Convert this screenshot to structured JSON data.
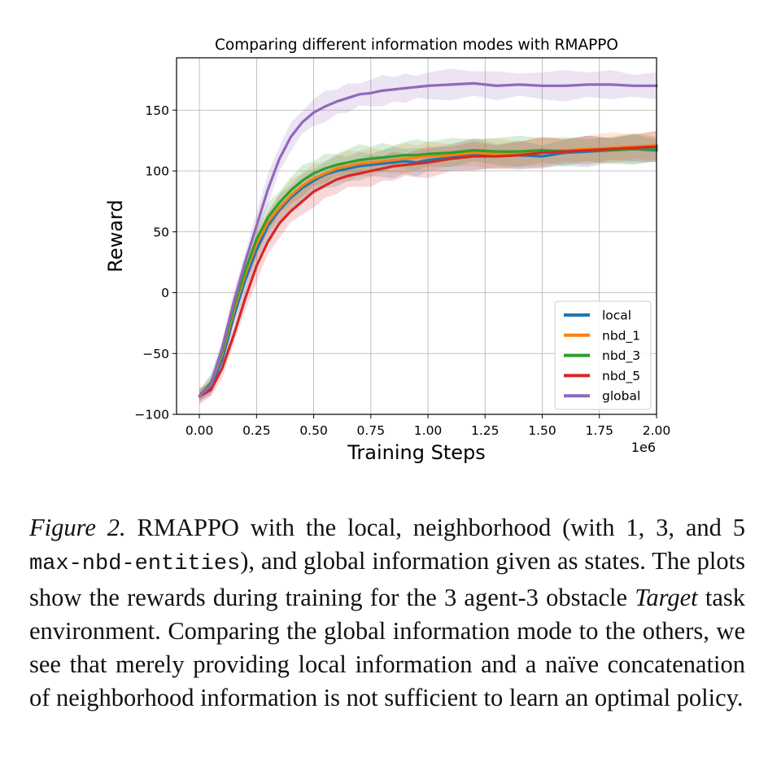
{
  "chart_data": {
    "type": "line",
    "title": "Comparing different information modes with RMAPPO",
    "xlabel": "Training Steps",
    "ylabel": "Reward",
    "x_offset_label": "1e6",
    "xlim": [
      -0.1,
      2.0
    ],
    "ylim": [
      -100,
      193
    ],
    "xticks": [
      0.0,
      0.25,
      0.5,
      0.75,
      1.0,
      1.25,
      1.5,
      1.75,
      2.0
    ],
    "xtick_labels": [
      "0.00",
      "0.25",
      "0.50",
      "0.75",
      "1.00",
      "1.25",
      "1.50",
      "1.75",
      "2.00"
    ],
    "yticks": [
      -100,
      -50,
      0,
      50,
      100,
      150
    ],
    "ytick_labels": [
      "−100",
      "−50",
      "0",
      "50",
      "100",
      "150"
    ],
    "grid": true,
    "legend_position": "lower-right",
    "series": [
      {
        "name": "local",
        "color": "#1f77b4",
        "x": [
          0,
          0.05,
          0.1,
          0.15,
          0.2,
          0.25,
          0.3,
          0.35,
          0.4,
          0.45,
          0.5,
          0.55,
          0.6,
          0.65,
          0.7,
          0.75,
          0.8,
          0.85,
          0.9,
          0.95,
          1.0,
          1.1,
          1.2,
          1.3,
          1.4,
          1.5,
          1.6,
          1.7,
          1.8,
          1.9,
          2.0
        ],
        "y": [
          -85,
          -78,
          -55,
          -20,
          10,
          35,
          55,
          68,
          78,
          86,
          92,
          97,
          100,
          102,
          104,
          105,
          106,
          107,
          108,
          107,
          109,
          111,
          114,
          112,
          113,
          112,
          115,
          116,
          117,
          118,
          117
        ]
      },
      {
        "name": "nbd_1",
        "color": "#ff7f0e",
        "x": [
          0,
          0.05,
          0.1,
          0.15,
          0.2,
          0.25,
          0.3,
          0.35,
          0.4,
          0.45,
          0.5,
          0.55,
          0.6,
          0.65,
          0.7,
          0.75,
          0.8,
          0.85,
          0.9,
          0.95,
          1.0,
          1.1,
          1.2,
          1.3,
          1.4,
          1.5,
          1.6,
          1.7,
          1.8,
          1.9,
          2.0
        ],
        "y": [
          -85,
          -75,
          -50,
          -15,
          15,
          40,
          58,
          70,
          80,
          88,
          94,
          98,
          102,
          104,
          106,
          107,
          108,
          109,
          110,
          111,
          112,
          113,
          115,
          114,
          114,
          116,
          117,
          118,
          119,
          120,
          121
        ]
      },
      {
        "name": "nbd_3",
        "color": "#2ca02c",
        "x": [
          0,
          0.05,
          0.1,
          0.15,
          0.2,
          0.25,
          0.3,
          0.35,
          0.4,
          0.45,
          0.5,
          0.55,
          0.6,
          0.65,
          0.7,
          0.75,
          0.8,
          0.85,
          0.9,
          0.95,
          1.0,
          1.1,
          1.2,
          1.3,
          1.4,
          1.5,
          1.6,
          1.7,
          1.8,
          1.9,
          2.0
        ],
        "y": [
          -85,
          -74,
          -48,
          -12,
          18,
          44,
          62,
          74,
          84,
          92,
          98,
          102,
          105,
          107,
          109,
          110,
          111,
          112,
          113,
          113,
          114,
          115,
          117,
          116,
          116,
          117,
          116,
          117,
          117,
          118,
          118
        ]
      },
      {
        "name": "nbd_5",
        "color": "#d62728",
        "x": [
          0,
          0.05,
          0.1,
          0.15,
          0.2,
          0.25,
          0.3,
          0.35,
          0.4,
          0.45,
          0.5,
          0.55,
          0.6,
          0.65,
          0.7,
          0.75,
          0.8,
          0.85,
          0.9,
          0.95,
          1.0,
          1.1,
          1.2,
          1.3,
          1.4,
          1.5,
          1.6,
          1.7,
          1.8,
          1.9,
          2.0
        ],
        "y": [
          -85,
          -80,
          -62,
          -35,
          -5,
          22,
          42,
          57,
          67,
          75,
          83,
          88,
          93,
          96,
          98,
          100,
          102,
          104,
          105,
          106,
          107,
          110,
          112,
          112,
          113,
          115,
          116,
          117,
          118,
          119,
          120
        ]
      },
      {
        "name": "global",
        "color": "#9467bd",
        "x": [
          0,
          0.05,
          0.1,
          0.15,
          0.2,
          0.25,
          0.3,
          0.35,
          0.4,
          0.45,
          0.5,
          0.55,
          0.6,
          0.65,
          0.7,
          0.75,
          0.8,
          0.85,
          0.9,
          0.95,
          1.0,
          1.1,
          1.2,
          1.3,
          1.4,
          1.5,
          1.6,
          1.7,
          1.8,
          1.9,
          2.0
        ],
        "y": [
          -85,
          -76,
          -45,
          -8,
          25,
          55,
          85,
          110,
          128,
          140,
          148,
          153,
          157,
          160,
          163,
          164,
          166,
          167,
          168,
          169,
          170,
          171,
          172,
          170,
          171,
          170,
          170,
          171,
          171,
          170,
          170
        ]
      }
    ]
  },
  "caption": {
    "figure_label": "Figure 2.",
    "text_1": " RMAPPO with the local, neighborhood (with 1, 3, and 5 ",
    "code": "max-nbd-entities",
    "text_2": "), and global information given as states. The plots show the rewards during training for the 3 agent-3 obstacle ",
    "task_name": "Target",
    "text_3": " task environment. Comparing the global information mode to the others, we see that merely providing local information and a naïve concatenation of neighborhood information is not sufficient to learn an optimal policy."
  }
}
